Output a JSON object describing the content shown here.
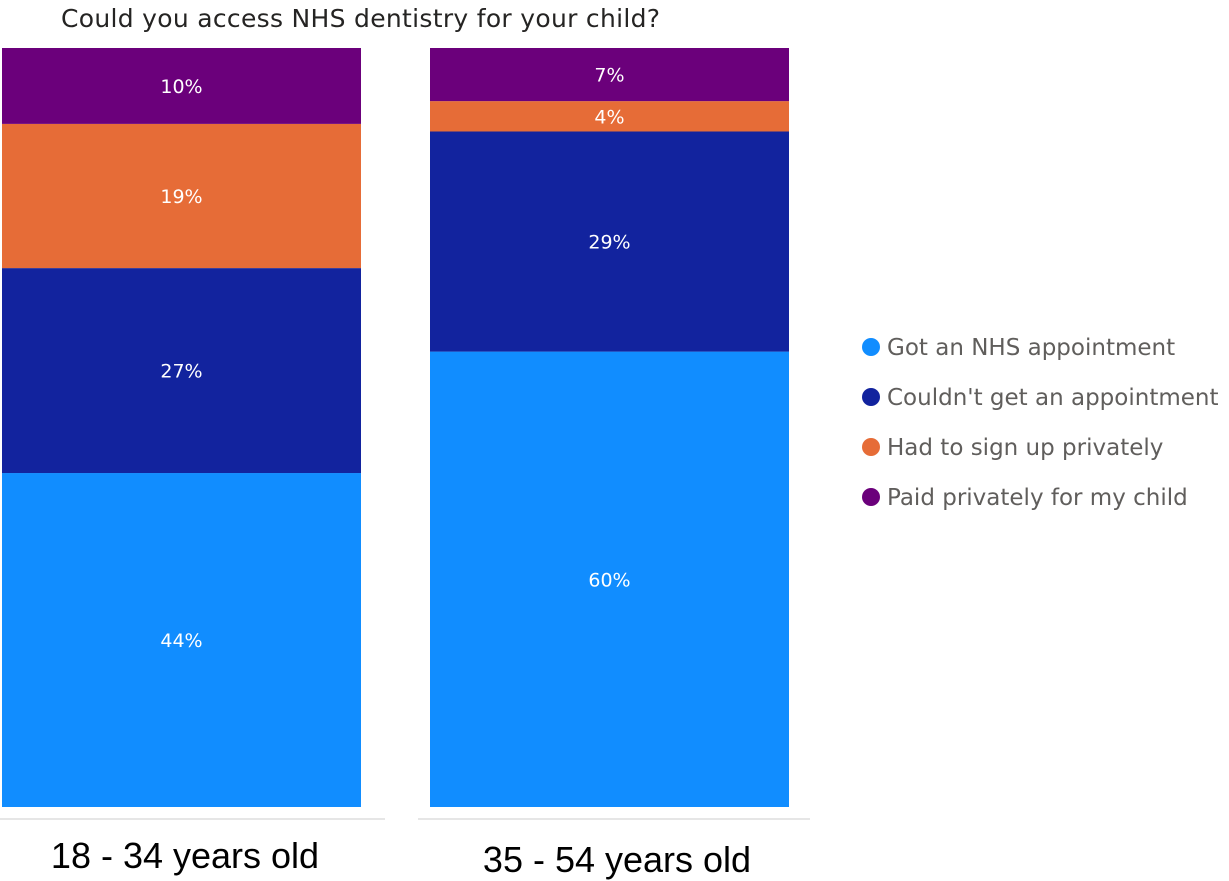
{
  "chart_data": {
    "type": "bar",
    "stacked": true,
    "title": "Could you access NHS dentistry for your child?",
    "categories": [
      "18 - 34 years old",
      "35 - 54 years old"
    ],
    "series": [
      {
        "name": "Got an NHS appointment",
        "color": "#118dff",
        "values": [
          44,
          60
        ],
        "labels": [
          "44%",
          "60%"
        ]
      },
      {
        "name": "Couldn't get an appointment",
        "color": "#12239e",
        "values": [
          27,
          29
        ],
        "labels": [
          "27%",
          "29%"
        ]
      },
      {
        "name": "Had to sign up privately",
        "color": "#e66c37",
        "values": [
          19,
          4
        ],
        "labels": [
          "19%",
          "4%"
        ]
      },
      {
        "name": "Paid privately for my child",
        "color": "#6b007b",
        "values": [
          10,
          7
        ],
        "labels": [
          "10%",
          "7%"
        ]
      }
    ],
    "ylim": [
      0,
      100
    ],
    "legend_position": "right",
    "grid": false
  }
}
